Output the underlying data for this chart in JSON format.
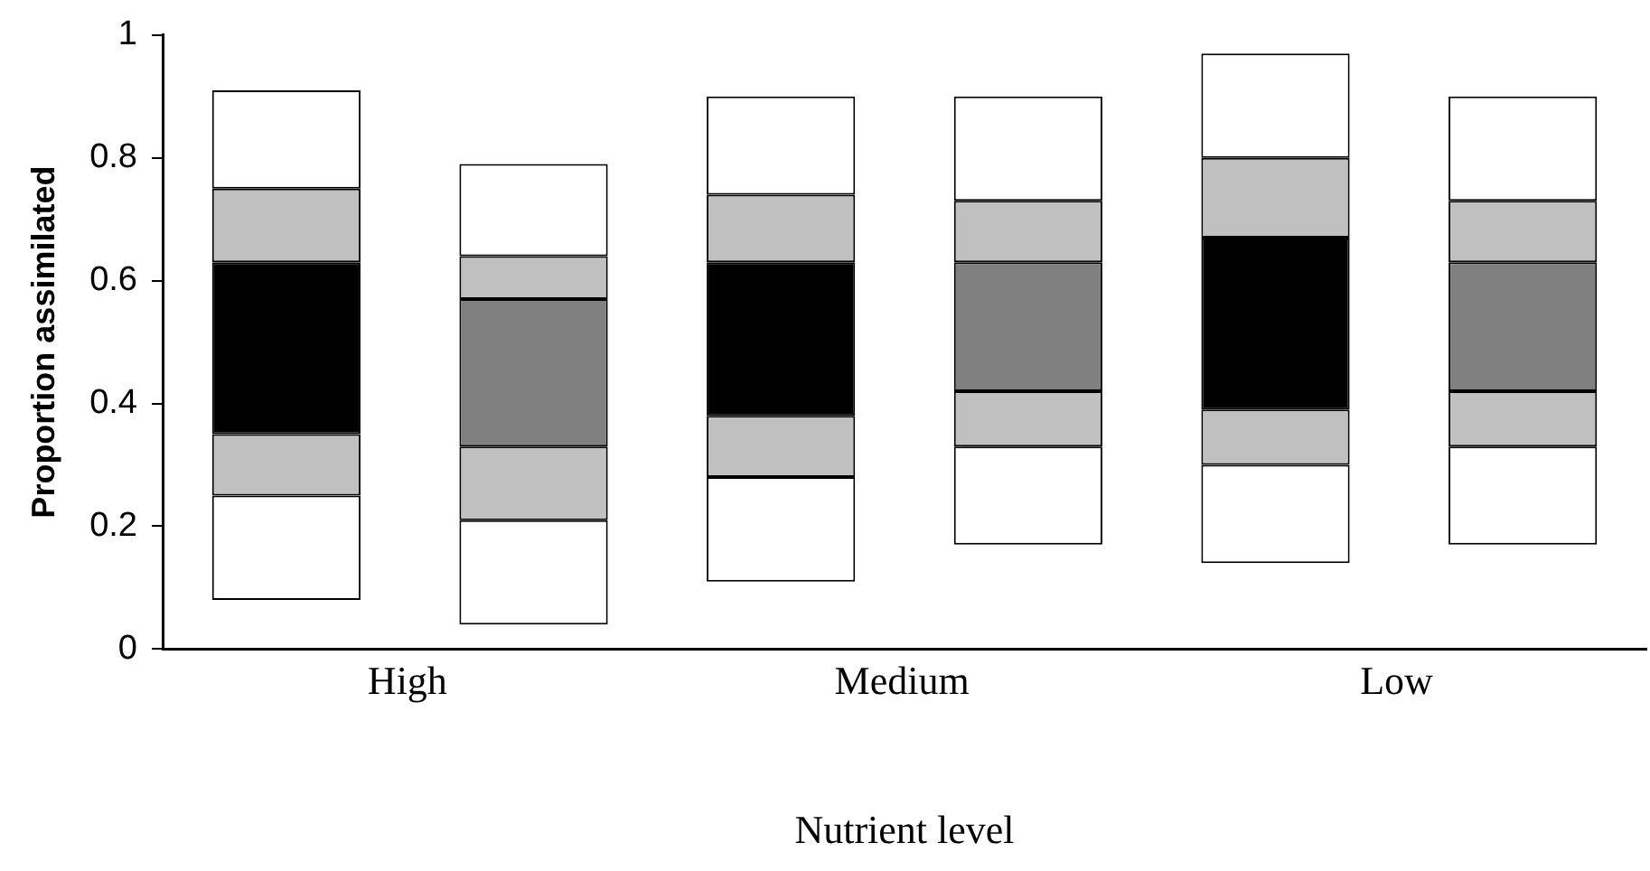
{
  "chart_data": {
    "type": "bar",
    "xlabel": "Nutrient level",
    "ylabel": "Proportion assimilated",
    "categories": [
      "High",
      null,
      "Medium",
      null,
      "Low",
      null
    ],
    "ylim": [
      0,
      1
    ],
    "yticks": [
      0,
      {
        "value": 0.2,
        "label": "0.2"
      },
      {
        "value": 0.4,
        "label": "0.4"
      },
      {
        "value": 0.6,
        "label": "0.6"
      },
      {
        "value": 0.8,
        "label": "0.8"
      },
      1
    ],
    "grid": false,
    "legend": false,
    "series": [
      {
        "color": "#ffffff",
        "base": [
          0.08,
          0.04,
          0.11,
          0.17,
          0.14,
          0.17
        ],
        "values": [
          0.17,
          0.17,
          0.17,
          0.16,
          0.16,
          0.16
        ]
      },
      {
        "color": "#c0c0c0",
        "base": [
          0.25,
          0.21,
          0.28,
          0.33,
          0.3,
          0.33
        ],
        "values": [
          0.1,
          0.12,
          0.1,
          0.09,
          0.09,
          0.09
        ]
      },
      {
        "colors": [
          "#000000",
          "#808080",
          "#000000",
          "#808080",
          "#000000",
          "#808080"
        ],
        "base": [
          0.35,
          0.33,
          0.38,
          0.42,
          0.39,
          0.42
        ],
        "values": [
          0.28,
          0.24,
          0.25,
          0.21,
          0.28,
          0.21
        ]
      },
      {
        "color": "#c0c0c0",
        "base": [
          0.63,
          0.57,
          0.63,
          0.63,
          0.67,
          0.63
        ],
        "values": [
          0.12,
          0.07,
          0.11,
          0.1,
          0.13,
          0.1
        ]
      },
      {
        "color": "#ffffff",
        "base": [
          0.75,
          0.64,
          0.74,
          0.73,
          0.8,
          0.73
        ],
        "values": [
          0.16,
          0.15,
          0.16,
          0.17,
          0.17,
          0.17
        ]
      }
    ]
  }
}
